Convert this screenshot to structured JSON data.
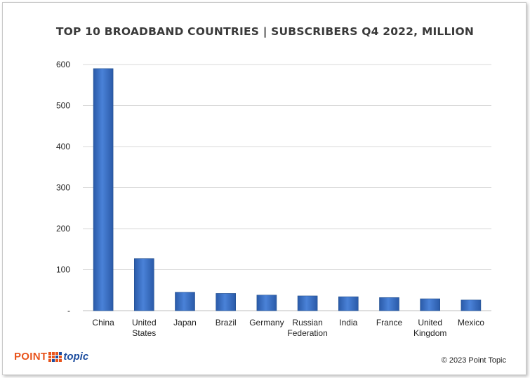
{
  "chart_data": {
    "type": "bar",
    "title": "TOP 10 BROADBAND COUNTRIES | SUBSCRIBERS Q4 2022, MILLION",
    "categories": [
      [
        "China"
      ],
      [
        "United",
        "States"
      ],
      [
        "Japan"
      ],
      [
        "Brazil"
      ],
      [
        "Germany"
      ],
      [
        "Russian",
        "Federation"
      ],
      [
        "India"
      ],
      [
        "France"
      ],
      [
        "United",
        "Kingdom"
      ],
      [
        "Mexico"
      ]
    ],
    "values": [
      590,
      127,
      45,
      42,
      38,
      36,
      34,
      32,
      29,
      26
    ],
    "ylim": [
      0,
      600
    ],
    "yticks": [
      0,
      100,
      200,
      300,
      400,
      500,
      600
    ],
    "ytick_labels": [
      "-",
      "100",
      "200",
      "300",
      "400",
      "500",
      "600"
    ],
    "xlabel": "",
    "ylabel": "",
    "grid": true,
    "bar_color": "#3b6fc4"
  },
  "footer": {
    "logo_word": "POINT",
    "logo_topic": "topic",
    "copyright": "© 2023 Point Topic"
  }
}
